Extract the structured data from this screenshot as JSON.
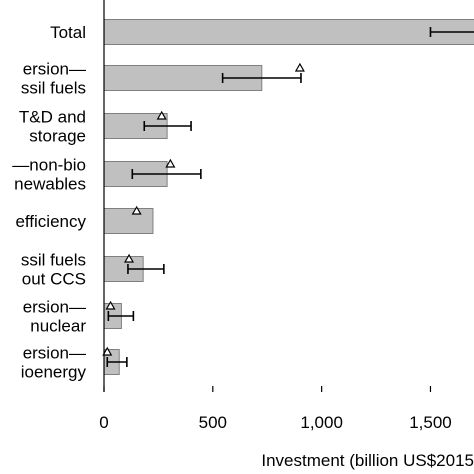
{
  "chart_data": {
    "type": "bar",
    "orientation": "horizontal",
    "categories": [
      [
        "Total"
      ],
      [
        "ersion—",
        "ssil fuels"
      ],
      [
        "T&D and",
        "storage"
      ],
      [
        "—non-bio",
        "newables"
      ],
      [
        "efficiency"
      ],
      [
        "ssil fuels",
        "out CCS"
      ],
      [
        "ersion—",
        "nuclear"
      ],
      [
        "ersion—",
        "ioenergy"
      ]
    ],
    "values": [
      1780,
      725,
      290,
      290,
      225,
      180,
      80,
      70
    ],
    "error_low": [
      1500,
      545,
      185,
      130,
      null,
      110,
      20,
      15
    ],
    "error_high": [
      1800,
      905,
      400,
      445,
      null,
      275,
      135,
      105
    ],
    "markers": [
      null,
      900,
      265,
      305,
      150,
      115,
      30,
      15
    ],
    "xlabel": "Investment (billion US$2015",
    "xlim": [
      0,
      1700
    ],
    "xticks": [
      0,
      500,
      1000,
      1500
    ],
    "xtick_labels": [
      "0",
      "500",
      "1,000",
      "1,500"
    ],
    "colors": {
      "bar_fill": "#c0c0c0",
      "bar_stroke": "#808080",
      "error": "#000000",
      "marker_fill": "#ffffff"
    }
  }
}
